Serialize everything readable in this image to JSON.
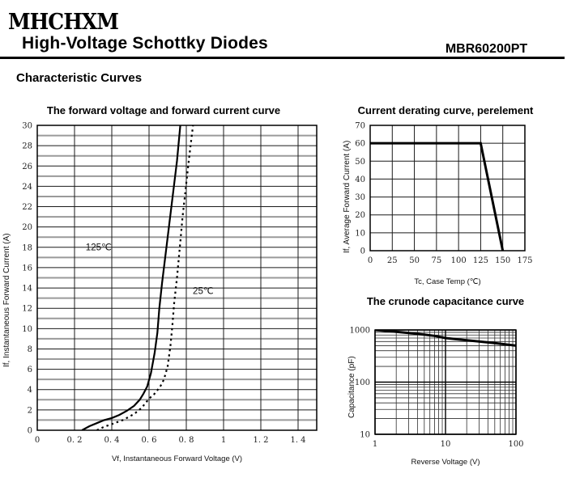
{
  "header": {
    "logo": "MHCHXM",
    "title": "High-Voltage Schottky Diodes",
    "part_number": "MBR60200PT"
  },
  "section_title": "Characteristic Curves",
  "chart_data": [
    {
      "id": "fv-curve",
      "type": "line",
      "title": "The forward voltage and forward current curve",
      "xlabel": "Vf, Instantaneous Forward Voltage (V)",
      "ylabel": "If, Instantaneous Forward Current (A)",
      "xscale": "linear",
      "yscale": "linear",
      "xlim": [
        0,
        1.5
      ],
      "ylim": [
        0,
        30
      ],
      "xticks": [
        0,
        0.2,
        0.4,
        0.6,
        0.8,
        1,
        1.2,
        1.4
      ],
      "xtick_labels": [
        "0",
        "0. 2",
        "0. 4",
        "0. 6",
        "0. 8",
        "1",
        "1. 2",
        "1. 4"
      ],
      "yticks": [
        0,
        2,
        4,
        6,
        8,
        10,
        12,
        14,
        16,
        18,
        20,
        22,
        24,
        26,
        28,
        30
      ],
      "ytick_labels": [
        "0",
        "2",
        "4",
        "6",
        "8",
        "10",
        "12",
        "14",
        "16",
        "18",
        "20",
        "22",
        "24",
        "26",
        "28",
        "30"
      ],
      "y_minor_step": 1,
      "grid": true,
      "series": [
        {
          "name": "125℃",
          "style": "solid",
          "points": [
            [
              0.24,
              0
            ],
            [
              0.28,
              0.4
            ],
            [
              0.32,
              0.7
            ],
            [
              0.36,
              1.0
            ],
            [
              0.4,
              1.2
            ],
            [
              0.44,
              1.5
            ],
            [
              0.48,
              1.9
            ],
            [
              0.52,
              2.4
            ],
            [
              0.55,
              3.0
            ],
            [
              0.57,
              3.6
            ],
            [
              0.59,
              4.3
            ],
            [
              0.61,
              5.6
            ],
            [
              0.63,
              7.6
            ],
            [
              0.645,
              9.6
            ],
            [
              0.655,
              12
            ],
            [
              0.67,
              14.5
            ],
            [
              0.69,
              17.5
            ],
            [
              0.71,
              20.5
            ],
            [
              0.73,
              23.5
            ],
            [
              0.75,
              26.5
            ],
            [
              0.768,
              30
            ]
          ]
        },
        {
          "name": "25℃",
          "style": "dashed",
          "points": [
            [
              0.32,
              0
            ],
            [
              0.36,
              0.35
            ],
            [
              0.4,
              0.6
            ],
            [
              0.46,
              1.0
            ],
            [
              0.52,
              1.6
            ],
            [
              0.56,
              2.2
            ],
            [
              0.6,
              3.1
            ],
            [
              0.63,
              3.6
            ],
            [
              0.66,
              4.3
            ],
            [
              0.68,
              5.0
            ],
            [
              0.7,
              6.3
            ],
            [
              0.715,
              8.3
            ],
            [
              0.725,
              10.3
            ],
            [
              0.735,
              12.5
            ],
            [
              0.75,
              15
            ],
            [
              0.765,
              18
            ],
            [
              0.78,
              21
            ],
            [
              0.795,
              23.5
            ],
            [
              0.81,
              26
            ],
            [
              0.825,
              28.3
            ],
            [
              0.836,
              30
            ]
          ]
        }
      ],
      "annotations": [
        {
          "text": "125℃",
          "x": 0.26,
          "y": 17.7
        },
        {
          "text": "25℃",
          "x": 0.835,
          "y": 13.4
        }
      ]
    },
    {
      "id": "derating",
      "type": "line",
      "title": "Current derating curve, perelement",
      "xlabel": "Tc, Case Temp (℃)",
      "ylabel": "If, Average Forward Current (A)",
      "xscale": "linear",
      "yscale": "linear",
      "xlim": [
        0,
        175
      ],
      "ylim": [
        0,
        70
      ],
      "xticks": [
        0,
        25,
        50,
        75,
        100,
        125,
        150,
        175
      ],
      "xtick_labels": [
        "0",
        "25",
        "50",
        "75",
        "100",
        "125",
        "150",
        "175"
      ],
      "yticks": [
        0,
        10,
        20,
        30,
        40,
        50,
        60,
        70
      ],
      "ytick_labels": [
        "0",
        "10",
        "20",
        "30",
        "40",
        "50",
        "60",
        "70"
      ],
      "grid": true,
      "series": [
        {
          "name": "derating",
          "style": "thick",
          "points": [
            [
              0,
              60
            ],
            [
              125,
              60
            ],
            [
              150,
              0
            ]
          ]
        }
      ],
      "annotations": []
    },
    {
      "id": "capacitance",
      "type": "line",
      "title": "The crunode capacitance curve",
      "xlabel": "Reverse Voltage (V)",
      "ylabel": "Capacitance (pF)",
      "xscale": "log",
      "yscale": "log",
      "xlim": [
        1,
        100
      ],
      "ylim": [
        10,
        1000
      ],
      "xticks": [
        1,
        10,
        100
      ],
      "xtick_labels": [
        "1",
        "10",
        "100"
      ],
      "yticks": [
        10,
        100,
        1000
      ],
      "ytick_labels": [
        "10",
        "100",
        "1000"
      ],
      "grid": true,
      "series": [
        {
          "name": "capacitance",
          "style": "thick",
          "points": [
            [
              1,
              1000
            ],
            [
              1.5,
              955
            ],
            [
              2,
              925
            ],
            [
              3,
              875
            ],
            [
              4,
              840
            ],
            [
              5,
              815
            ],
            [
              7,
              770
            ],
            [
              10,
              700
            ],
            [
              15,
              660
            ],
            [
              20,
              635
            ],
            [
              30,
              600
            ],
            [
              50,
              560
            ],
            [
              70,
              530
            ],
            [
              100,
              500
            ]
          ]
        }
      ],
      "annotations": []
    }
  ]
}
